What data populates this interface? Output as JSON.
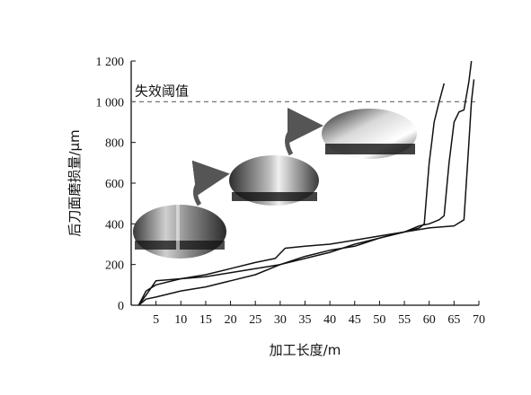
{
  "chart_data": {
    "type": "line",
    "xlabel": "加工长度/m",
    "ylabel": "后刀面磨损量/μm",
    "xlim": [
      0,
      70
    ],
    "ylim": [
      0,
      1200
    ],
    "x_ticks": [
      5,
      10,
      15,
      20,
      25,
      30,
      35,
      40,
      45,
      50,
      55,
      60,
      65,
      70
    ],
    "y_ticks": [
      0,
      200,
      400,
      600,
      800,
      1000,
      1200
    ],
    "y_tick_labels": [
      "0",
      "200",
      "400",
      "600",
      "800",
      "1 000",
      "1 200"
    ],
    "threshold": {
      "value": 1000,
      "label": "失效阈值",
      "style": "dashed"
    },
    "series": [
      {
        "values": [
          [
            1.5,
            0
          ],
          [
            3,
            70
          ],
          [
            5,
            100
          ],
          [
            10,
            130
          ],
          [
            15,
            150
          ],
          [
            20,
            180
          ],
          [
            25,
            210
          ],
          [
            29,
            230
          ],
          [
            31,
            280
          ],
          [
            35,
            290
          ],
          [
            40,
            300
          ],
          [
            45,
            320
          ],
          [
            50,
            340
          ],
          [
            55,
            360
          ],
          [
            58,
            380
          ],
          [
            59,
            400
          ],
          [
            60,
            700
          ],
          [
            60.5,
            800
          ],
          [
            61,
            900
          ],
          [
            62,
            1000
          ],
          [
            63,
            1090
          ]
        ]
      },
      {
        "values": [
          [
            1.5,
            0
          ],
          [
            3,
            50
          ],
          [
            5,
            120
          ],
          [
            10,
            130
          ],
          [
            15,
            140
          ],
          [
            20,
            160
          ],
          [
            25,
            180
          ],
          [
            30,
            200
          ],
          [
            35,
            240
          ],
          [
            40,
            270
          ],
          [
            45,
            290
          ],
          [
            50,
            330
          ],
          [
            55,
            360
          ],
          [
            58,
            390
          ],
          [
            60,
            400
          ],
          [
            62,
            420
          ],
          [
            63,
            440
          ],
          [
            64,
            700
          ],
          [
            65,
            900
          ],
          [
            66,
            950
          ],
          [
            67,
            960
          ],
          [
            68,
            1100
          ],
          [
            68.5,
            1200
          ]
        ]
      },
      {
        "values": [
          [
            1.5,
            0
          ],
          [
            3,
            30
          ],
          [
            5,
            40
          ],
          [
            10,
            70
          ],
          [
            15,
            90
          ],
          [
            20,
            120
          ],
          [
            25,
            150
          ],
          [
            30,
            200
          ],
          [
            35,
            230
          ],
          [
            40,
            260
          ],
          [
            45,
            300
          ],
          [
            50,
            330
          ],
          [
            55,
            360
          ],
          [
            60,
            380
          ],
          [
            65,
            390
          ],
          [
            67,
            420
          ],
          [
            68,
            800
          ],
          [
            68.5,
            1000
          ],
          [
            69,
            1110
          ]
        ]
      }
    ],
    "inset_images": [
      "刀具磨损照片-1",
      "刀具磨损照片-2",
      "刀具磨损照片-3"
    ]
  }
}
